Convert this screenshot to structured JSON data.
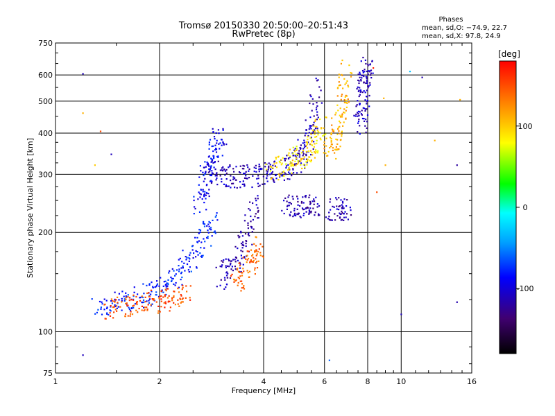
{
  "chart_data": {
    "type": "scatter",
    "title": "Tromsø 20150330 20:50:00–20:51:43",
    "subtitle": "RwPretec (8p)",
    "xlabel": "Frequency [MHz]",
    "ylabel": "Stationary phase Virtual Height [km]",
    "x_scale": "log2",
    "y_scale": "log",
    "xlim": [
      1,
      16
    ],
    "ylim": [
      75,
      750
    ],
    "x_ticks": [
      1,
      2,
      4,
      6,
      8,
      10,
      16
    ],
    "x_tick_labels": [
      "1",
      "2",
      "4",
      "6",
      "8",
      "10",
      "16"
    ],
    "y_ticks": [
      75,
      100,
      200,
      300,
      400,
      500,
      600,
      750
    ],
    "y_tick_labels": [
      "75",
      "100",
      "200",
      "300",
      "400",
      "500",
      "600",
      "750"
    ],
    "grid": true,
    "phases": {
      "title": "Phases",
      "line1": "mean, sd,O: −74.9, 22.7",
      "line2": "mean, sd,X:  97.8, 24.9"
    },
    "colorbar": {
      "label": "[deg]",
      "range": [
        -180,
        180
      ],
      "ticks": [
        100,
        0,
        -100
      ],
      "tick_labels": [
        "100",
        "0",
        "-100"
      ],
      "placement": "right"
    },
    "traces": [
      {
        "x": [
          1.3,
          1.5,
          1.7,
          1.9,
          2.1,
          2.3,
          2.5,
          2.7,
          2.85
        ],
        "y": [
          118,
          122,
          126,
          132,
          140,
          152,
          170,
          195,
          225
        ],
        "phase": -80
      },
      {
        "x": [
          1.4,
          1.6,
          1.8,
          2.0,
          2.2,
          2.4
        ],
        "y": [
          118,
          120,
          122,
          124,
          126,
          130
        ],
        "phase": 150
      },
      {
        "x": [
          2.8,
          3.0,
          3.3,
          3.6,
          4.0,
          4.3,
          4.7,
          5.0,
          5.3,
          5.5,
          5.7
        ],
        "y": [
          310,
          300,
          295,
          296,
          300,
          305,
          315,
          330,
          360,
          420,
          560
        ],
        "phase": -110
      },
      {
        "x": [
          2.6,
          2.7,
          2.8,
          2.9,
          3.0
        ],
        "y": [
          240,
          280,
          320,
          360,
          400
        ],
        "phase": -90
      },
      {
        "x": [
          3.0,
          3.2,
          3.4,
          3.6,
          3.8
        ],
        "y": [
          145,
          155,
          170,
          200,
          250
        ],
        "phase": -115
      },
      {
        "x": [
          3.3,
          3.5,
          3.7,
          3.9
        ],
        "y": [
          140,
          150,
          165,
          185
        ],
        "phase": 140
      },
      {
        "x": [
          4.2,
          4.6,
          5.0,
          5.4,
          5.7,
          5.9
        ],
        "y": [
          310,
          320,
          335,
          350,
          380,
          430
        ],
        "phase": 90
      },
      {
        "x": [
          6.2,
          6.4,
          6.6,
          6.8,
          6.9
        ],
        "y": [
          350,
          380,
          430,
          520,
          620
        ],
        "phase": 110
      },
      {
        "x": [
          4.6,
          5.0,
          5.4,
          5.7
        ],
        "y": [
          240,
          240,
          242,
          240
        ],
        "phase": -115
      },
      {
        "x": [
          6.3,
          6.6,
          7.0
        ],
        "y": [
          236,
          235,
          234
        ],
        "phase": -115
      },
      {
        "x": [
          7.6,
          7.7,
          7.8,
          7.9,
          8.0
        ],
        "y": [
          420,
          480,
          540,
          600,
          640
        ],
        "phase": -110
      }
    ],
    "points": [
      {
        "x": 1.2,
        "y": 605,
        "phase": -110
      },
      {
        "x": 1.2,
        "y": 85,
        "phase": -110
      },
      {
        "x": 1.2,
        "y": 460,
        "phase": 110
      },
      {
        "x": 1.35,
        "y": 405,
        "phase": 150
      },
      {
        "x": 1.45,
        "y": 345,
        "phase": -110
      },
      {
        "x": 1.3,
        "y": 320,
        "phase": 100
      },
      {
        "x": 8.3,
        "y": 630,
        "phase": 170
      },
      {
        "x": 8.9,
        "y": 510,
        "phase": 110
      },
      {
        "x": 10.0,
        "y": 113,
        "phase": -110
      },
      {
        "x": 10.6,
        "y": 615,
        "phase": -30
      },
      {
        "x": 11.5,
        "y": 590,
        "phase": -115
      },
      {
        "x": 12.5,
        "y": 380,
        "phase": 110
      },
      {
        "x": 14.5,
        "y": 320,
        "phase": -120
      },
      {
        "x": 14.5,
        "y": 123,
        "phase": -115
      },
      {
        "x": 9.0,
        "y": 320,
        "phase": 110
      },
      {
        "x": 8.5,
        "y": 265,
        "phase": 150
      },
      {
        "x": 6.2,
        "y": 82,
        "phase": -60
      },
      {
        "x": 14.8,
        "y": 505,
        "phase": 110
      }
    ]
  }
}
